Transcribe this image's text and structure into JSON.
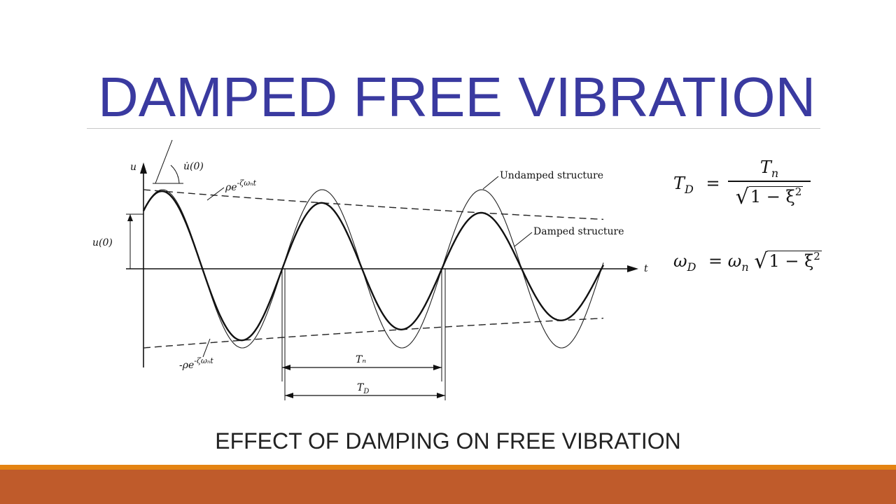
{
  "slide": {
    "title": "DAMPED FREE VIBRATION",
    "caption": "EFFECT OF DAMPING ON FREE VIBRATION",
    "accent_colors": {
      "title": "#3a3aa0",
      "stripe_orange": "#e48312",
      "stripe_rust": "#bf5b2b"
    }
  },
  "figure": {
    "axis_u": "u",
    "axis_t": "t",
    "u_dot_0": "u̇(0)",
    "u_0": "u(0)",
    "envelope_pos": "ρe",
    "envelope_pos_exp": "-ζωₙt",
    "envelope_neg": "-ρe",
    "envelope_neg_exp": "-ζωₙt",
    "undamped_label": "Undamped structure",
    "damped_label": "Damped structure",
    "Tn_label": "Tₙ",
    "TD_label": "T",
    "TD_sub": "D"
  },
  "equations": {
    "td_lhs": "T",
    "td_lhs_sub": "D",
    "td_eq": "=",
    "td_num": "T",
    "td_num_sub": "n",
    "td_den": "1 − ξ",
    "td_den_sup": "2",
    "wd_lhs": "ω",
    "wd_lhs_sub": "D",
    "wd_eq": "= ω",
    "wd_rhs_sub": "n",
    "wd_rad": "1 − ξ",
    "wd_rad_sup": "2"
  }
}
